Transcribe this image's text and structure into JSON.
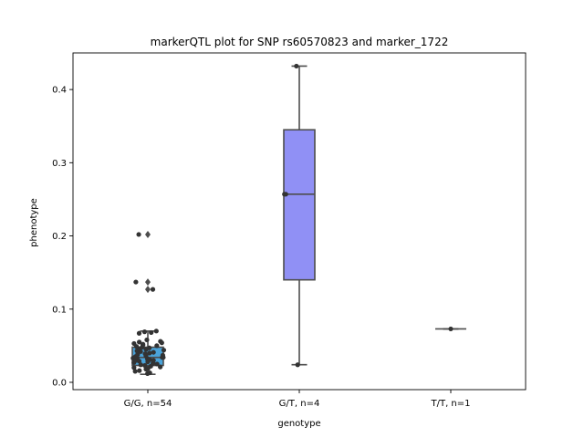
{
  "chart_data": {
    "type": "box",
    "title": "markerQTL plot for SNP rs60570823 and marker_1722",
    "xlabel": "genotype",
    "ylabel": "phenotype",
    "ylim": [
      -0.01,
      0.45
    ],
    "yticks": [
      "0.0",
      "0.1",
      "0.2",
      "0.3",
      "0.4"
    ],
    "categories": [
      "G/G, n=54",
      "G/T, n=4",
      "T/T, n=1"
    ],
    "boxes": [
      {
        "category": "G/G, n=54",
        "color": "#4aa3d9",
        "q1": 0.023,
        "median": 0.034,
        "q3": 0.048,
        "whisker_low": 0.011,
        "whisker_high": 0.07,
        "outliers": [
          0.127,
          0.137,
          0.202
        ]
      },
      {
        "category": "G/T, n=4",
        "color": "#9090f5",
        "q1": 0.14,
        "median": 0.257,
        "q3": 0.345,
        "whisker_low": 0.024,
        "whisker_high": 0.432,
        "outliers": []
      },
      {
        "category": "T/T, n=1",
        "color": "#4aa3d9",
        "q1": 0.073,
        "median": 0.073,
        "q3": 0.073,
        "whisker_low": 0.073,
        "whisker_high": 0.073,
        "outliers": []
      }
    ],
    "points": [
      {
        "category": 0,
        "values": [
          0.012,
          0.013,
          0.015,
          0.016,
          0.018,
          0.019,
          0.02,
          0.021,
          0.022,
          0.023,
          0.024,
          0.025,
          0.026,
          0.027,
          0.028,
          0.029,
          0.03,
          0.03,
          0.031,
          0.032,
          0.033,
          0.033,
          0.034,
          0.034,
          0.035,
          0.036,
          0.037,
          0.038,
          0.039,
          0.04,
          0.041,
          0.042,
          0.043,
          0.044,
          0.045,
          0.046,
          0.047,
          0.048,
          0.049,
          0.05,
          0.051,
          0.052,
          0.053,
          0.054,
          0.055,
          0.056,
          0.058,
          0.067,
          0.068,
          0.069,
          0.07,
          0.127,
          0.137,
          0.202
        ]
      },
      {
        "category": 1,
        "values": [
          0.024,
          0.257,
          0.257,
          0.432
        ]
      },
      {
        "category": 2,
        "values": [
          0.073
        ]
      }
    ]
  }
}
